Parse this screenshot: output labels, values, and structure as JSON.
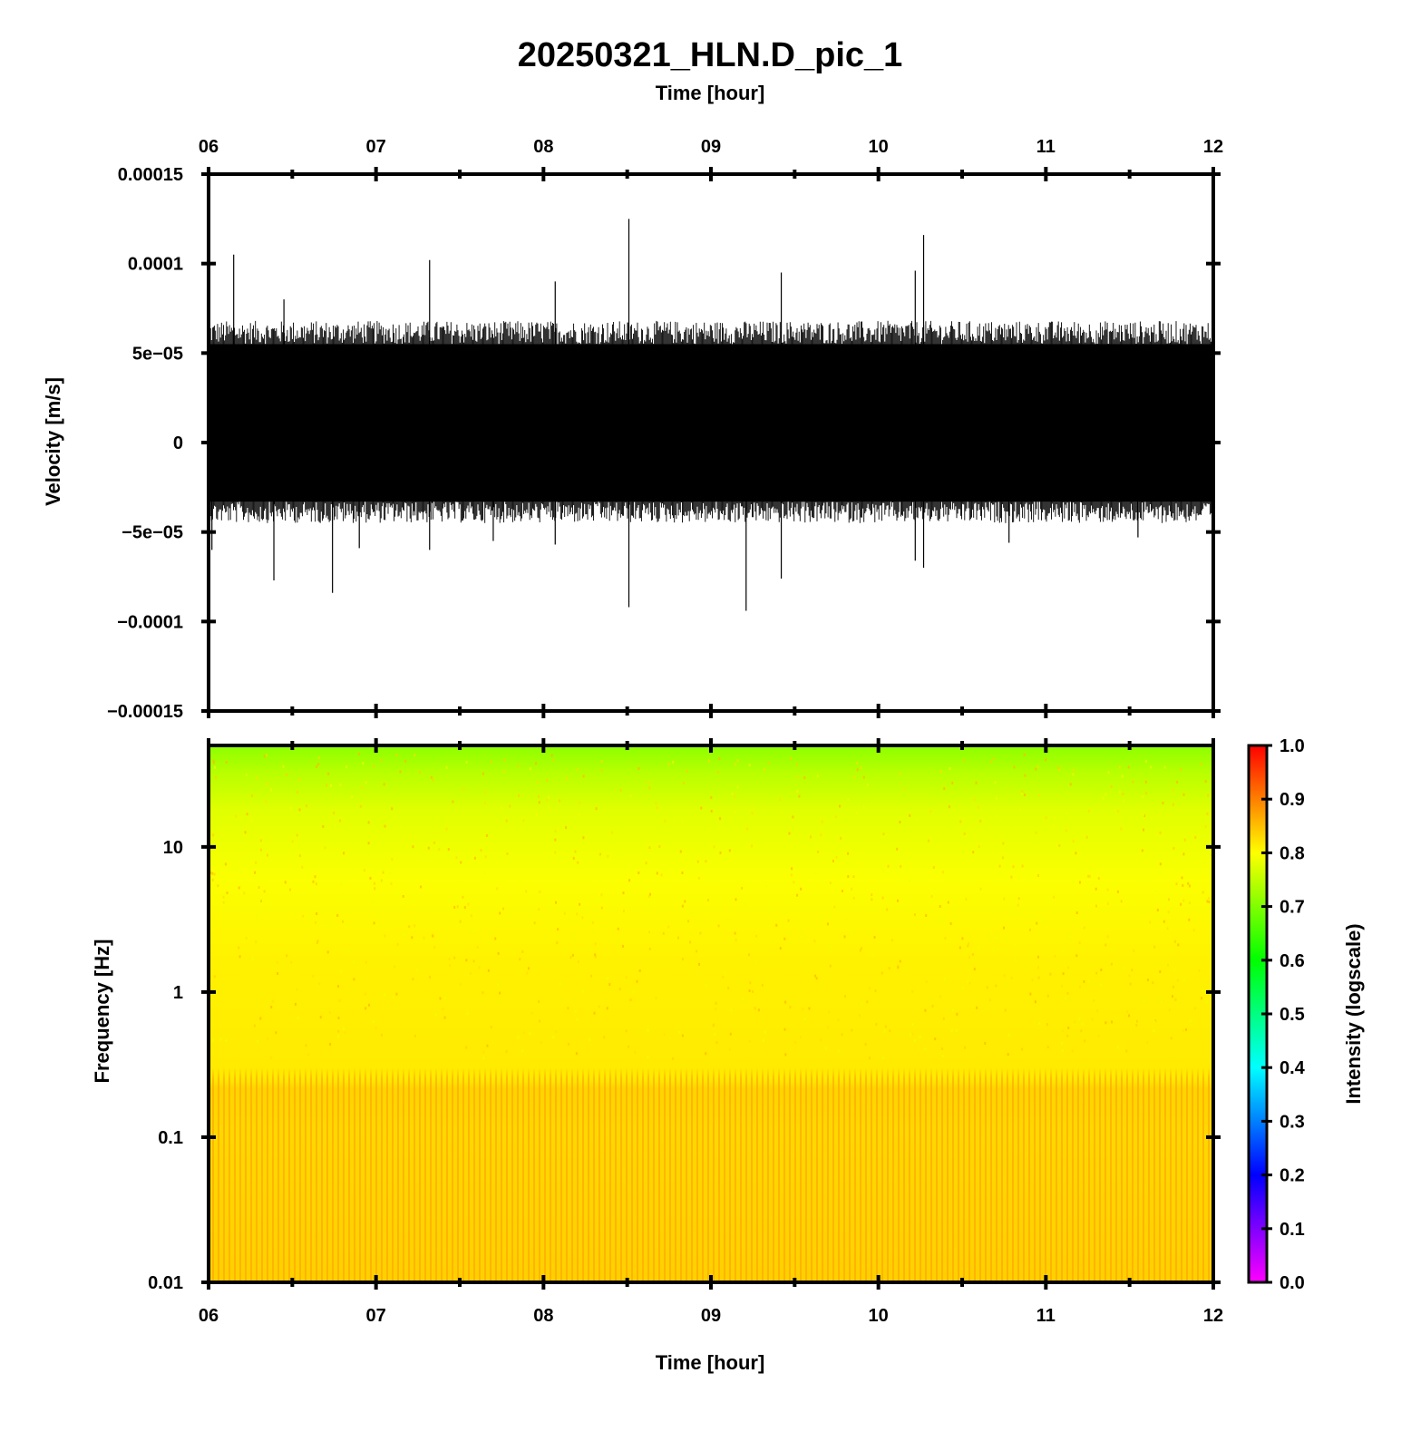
{
  "chart_data": [
    {
      "type": "line",
      "title": "20250321_HLN.D_pic_1",
      "xlabel": "Time [hour]",
      "ylabel": "Velocity [m/s]",
      "xlim": [
        6,
        12
      ],
      "ylim": [
        -0.00015,
        0.00015
      ],
      "xticks": [
        "06",
        "07",
        "08",
        "09",
        "10",
        "11",
        "12"
      ],
      "yticks": [
        "0.00015",
        "0.0001",
        "5e−05",
        "0",
        "−5e−05",
        "−0.0001",
        "−0.00015"
      ],
      "ytick_values": [
        0.00015,
        0.0001,
        5e-05,
        0,
        -5e-05,
        -0.0001,
        -0.00015
      ],
      "series": [
        {
          "envelope": {
            "upper": 5.5e-05,
            "lower": -3.3e-05
          },
          "spikes": [
            {
              "t": 6.02,
              "v": -6e-05
            },
            {
              "t": 6.15,
              "v": 0.000105
            },
            {
              "t": 6.39,
              "v": -7.7e-05
            },
            {
              "t": 6.45,
              "v": 8e-05
            },
            {
              "t": 6.74,
              "v": -8.4e-05
            },
            {
              "t": 6.9,
              "v": -5.9e-05
            },
            {
              "t": 7.32,
              "v": 0.000102
            },
            {
              "t": 7.32,
              "v": -6e-05
            },
            {
              "t": 7.7,
              "v": -5.5e-05
            },
            {
              "t": 8.07,
              "v": 9e-05
            },
            {
              "t": 8.07,
              "v": -5.7e-05
            },
            {
              "t": 8.51,
              "v": 0.000125
            },
            {
              "t": 8.51,
              "v": -9.2e-05
            },
            {
              "t": 9.21,
              "v": -9.4e-05
            },
            {
              "t": 9.42,
              "v": 9.5e-05
            },
            {
              "t": 9.42,
              "v": -7.6e-05
            },
            {
              "t": 10.22,
              "v": 9.6e-05
            },
            {
              "t": 10.22,
              "v": -6.6e-05
            },
            {
              "t": 10.27,
              "v": 0.000116
            },
            {
              "t": 10.27,
              "v": -7e-05
            },
            {
              "t": 10.78,
              "v": -5.6e-05
            },
            {
              "t": 11.55,
              "v": -5.3e-05
            }
          ]
        }
      ],
      "grid": false
    },
    {
      "type": "heatmap",
      "xlabel": "Time [hour]",
      "ylabel": "Frequency [Hz]",
      "xlim": [
        6,
        12
      ],
      "ylim": [
        0.01,
        50
      ],
      "y_scale": "log",
      "xticks": [
        "06",
        "07",
        "08",
        "09",
        "10",
        "11",
        "12"
      ],
      "yticks": [
        "10",
        "1",
        "0.1",
        "0.01"
      ],
      "ytick_values": [
        10,
        1,
        0.1,
        0.01
      ],
      "colorbar": {
        "label": "Intensity (logscale)",
        "ticks": [
          "1.0",
          "0.9",
          "0.8",
          "0.7",
          "0.6",
          "0.5",
          "0.4",
          "0.3",
          "0.2",
          "0.1",
          "0.0"
        ],
        "range": [
          0,
          1
        ],
        "colormap": [
          "#ff00ff",
          "#0000ff",
          "#00ffff",
          "#00ff00",
          "#ffff00",
          "#ff0000"
        ]
      },
      "intensity_profile": [
        {
          "freq": 50,
          "intensity": 0.67
        },
        {
          "freq": 20,
          "intensity": 0.73
        },
        {
          "freq": 10,
          "intensity": 0.77
        },
        {
          "freq": 3,
          "intensity": 0.81
        },
        {
          "freq": 1,
          "intensity": 0.82
        },
        {
          "freq": 0.3,
          "intensity": 0.82
        },
        {
          "freq": 0.2,
          "intensity": 0.85
        },
        {
          "freq": 0.01,
          "intensity": 0.85
        }
      ]
    }
  ]
}
